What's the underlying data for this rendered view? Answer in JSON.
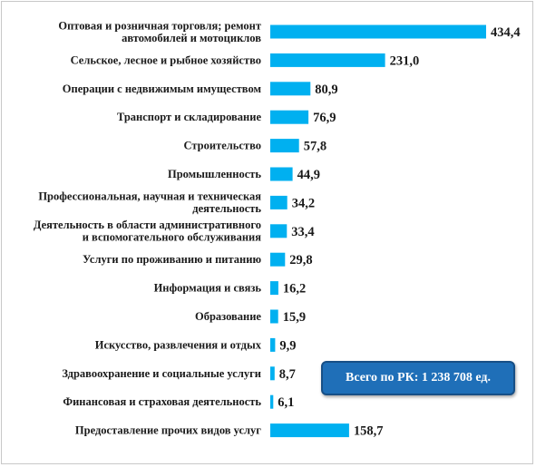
{
  "chart_data": {
    "type": "bar",
    "orientation": "horizontal",
    "categories": [
      [
        "Оптовая и розничная торговля; ремонт",
        "автомобилей и мотоциклов"
      ],
      [
        "Сельское, лесное и рыбное хозяйство"
      ],
      [
        "Операции с недвижимым имуществом"
      ],
      [
        "Транспорт и складирование"
      ],
      [
        "Строительство"
      ],
      [
        "Промышленность"
      ],
      [
        "Профессиональная, научная и техническая",
        "деятельность"
      ],
      [
        "Деятельность в области административного",
        "и вспомогательного обслуживания"
      ],
      [
        "Услуги по проживанию и питанию"
      ],
      [
        "Информация и связь"
      ],
      [
        "Образование"
      ],
      [
        "Искусство, развлечения и отдых"
      ],
      [
        "Здравоохранение и социальные услуги"
      ],
      [
        "Финансовая и страховая деятельность"
      ],
      [
        "Предоставление прочих видов услуг"
      ]
    ],
    "values": [
      434.4,
      231.0,
      80.9,
      76.9,
      57.8,
      44.9,
      34.2,
      33.4,
      29.8,
      16.2,
      15.9,
      9.9,
      8.7,
      6.1,
      158.7
    ],
    "value_labels": [
      "434,4",
      "231,0",
      "80,9",
      "76,9",
      "57,8",
      "44,9",
      "34,2",
      "33,4",
      "29,8",
      "16,2",
      "15,9",
      "9,9",
      "8,7",
      "6,1",
      "158,7"
    ],
    "bar_color": "#00b0f0",
    "grid": false,
    "legend": "none"
  },
  "annotation": {
    "total_text": "Всего по РК: 1 238 708 ед.",
    "background": "#1f6fb8"
  }
}
